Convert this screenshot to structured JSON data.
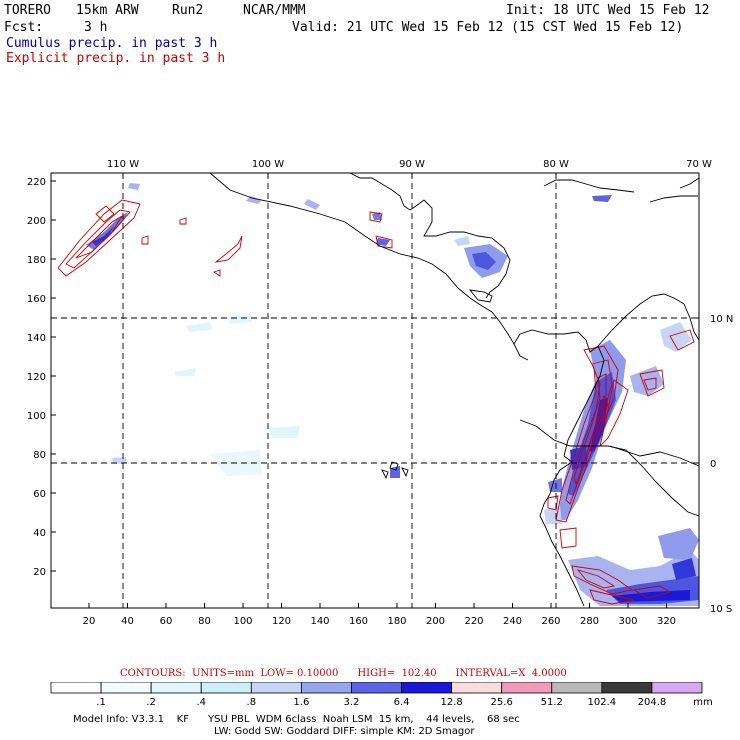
{
  "header": {
    "model_name": "TORERO",
    "resolution": "15km ARW",
    "run": "Run2",
    "org": "NCAR/MMM",
    "init": "Init: 18 UTC Wed 15 Feb 12",
    "fcst_label": "Fcst:",
    "fcst_value": "3 h",
    "valid": "Valid: 21 UTC Wed 15 Feb 12 (15 CST Wed 15 Feb 12)"
  },
  "legend_lines": {
    "cumulus": "Cumulus precip. in past 3 h",
    "explicit": "Explicit precip. in past 3 h",
    "cumulus_color": "#000099",
    "explicit_color": "#cc0000"
  },
  "map": {
    "top_lon_labels": [
      "110 W",
      "100 W",
      "90 W",
      "80 W",
      "70 W"
    ],
    "right_lat_labels": [
      "10 N",
      "0",
      "10 S"
    ],
    "left_y_ticks": [
      "220",
      "200",
      "180",
      "160",
      "140",
      "120",
      "100",
      "80",
      "60",
      "40",
      "20"
    ],
    "bottom_x_ticks": [
      "20",
      "40",
      "60",
      "80",
      "100",
      "120",
      "140",
      "160",
      "180",
      "200",
      "220",
      "240",
      "260",
      "280",
      "300",
      "320"
    ]
  },
  "contours_note": "CONTOURS:  UNITS=mm  LOW= 0.10000      HIGH=  102.40      INTERVAL=X  4.0000",
  "colorbar": {
    "labels": [
      ".1",
      ".2",
      ".4",
      ".8",
      "1.6",
      "3.2",
      "6.4",
      "12.8",
      "25.6",
      "51.2",
      "102.4",
      "204.8"
    ],
    "units": "mm",
    "colors": [
      "#ffffff",
      "#f2fbfd",
      "#e0f6fb",
      "#cdeef6",
      "#c5d5f3",
      "#97a5ee",
      "#5b63e8",
      "#1a1ad6",
      "#f8dcde",
      "#f19ab9",
      "#b9b9b9",
      "#3a3a3a",
      "#d9a6f2"
    ]
  },
  "footer": {
    "line1": "Model Info: V3.3.1    KF      YSU PBL  WDM 6class  Noah LSM  15 km,    44 levels,    68 sec",
    "line2": "LW: Godd SW: Goddard DIFF: simple KM: 2D Smagor"
  }
}
